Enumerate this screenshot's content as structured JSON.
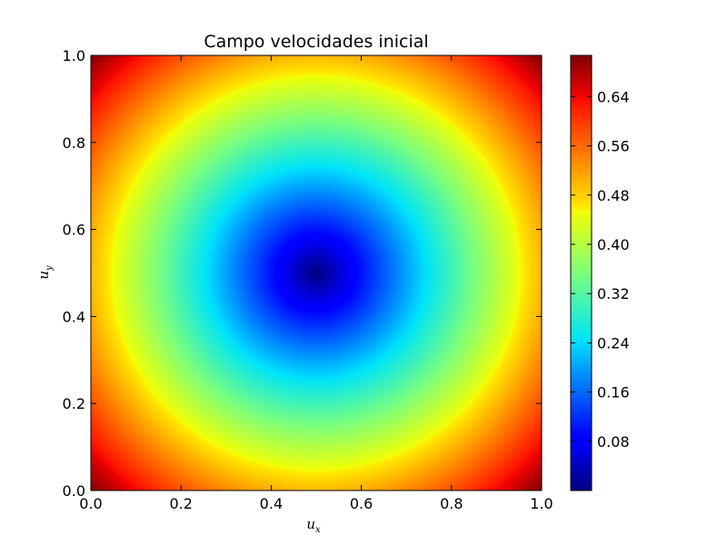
{
  "chart_data": {
    "type": "heatmap",
    "title": "Campo velocidades inicial",
    "xlabel": {
      "base": "u",
      "sub": "x"
    },
    "ylabel": {
      "base": "u",
      "sub": "y"
    },
    "xlim": [
      0.0,
      1.0
    ],
    "ylim": [
      0.0,
      1.0
    ],
    "x_ticks": [
      "0.0",
      "0.2",
      "0.4",
      "0.6",
      "0.8",
      "1.0"
    ],
    "y_ticks": [
      "0.0",
      "0.2",
      "0.4",
      "0.6",
      "0.8",
      "1.0"
    ],
    "colormap": "jet",
    "field": "distance from center (0.5, 0.5)",
    "center": [
      0.5,
      0.5
    ],
    "value_range": [
      0.0,
      0.707
    ],
    "colorbar_ticks": [
      "0.08",
      "0.16",
      "0.24",
      "0.32",
      "0.40",
      "0.48",
      "0.56",
      "0.64"
    ],
    "grid": false
  }
}
